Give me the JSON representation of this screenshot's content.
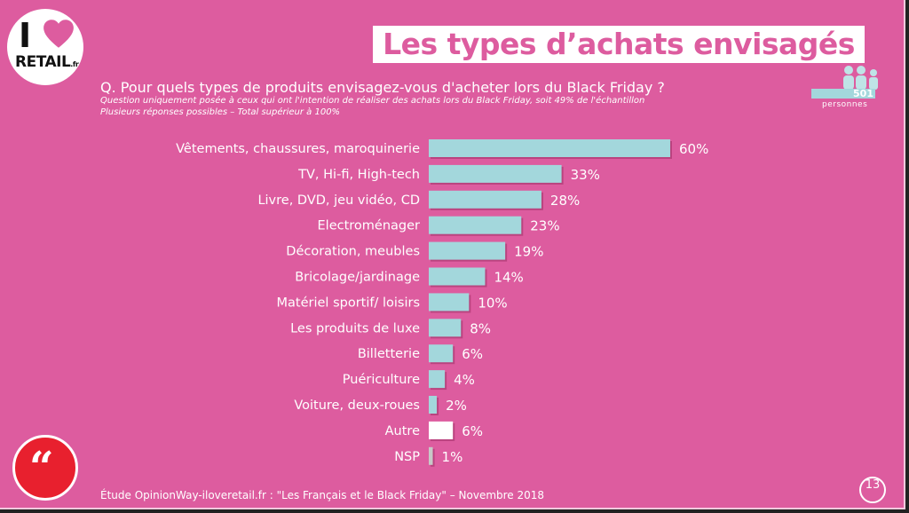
{
  "header": {
    "title": "Les types d’achats envisagés",
    "question": "Q. Pour quels types de produits envisagez-vous d'acheter lors du Black Friday ?",
    "note_1": "Question uniquement posée à ceux qui ont l'intention de réaliser des achats lors du Black Friday, soit 49% de l'échantillon",
    "note_2": "Plusieurs réponses possibles – Total supérieur à 100%"
  },
  "logo": {
    "i_text": "I",
    "retail_text": "RETAIL",
    "fr_text": ".fr",
    "heart_icon": "heart-icon"
  },
  "sample": {
    "count": "501",
    "label": "personnes",
    "icon": "people-icon"
  },
  "footer": {
    "quote_icon": "quote-icon",
    "source": "Étude OpinionWay-iloveretail.fr : \"Les Français et le Black Friday\" – Novembre 2018",
    "page_number": "13"
  },
  "colors": {
    "background": "#dd5c9f",
    "bar": "#a3d7dc",
    "bar_autre": "#ffffff",
    "bar_nsp": "#c8c8c8",
    "quote_red": "#e8202e"
  },
  "chart_data": {
    "type": "bar",
    "orientation": "horizontal",
    "categories": [
      "Vêtements, chaussures, maroquinerie",
      "TV, Hi-fi, High-tech",
      "Livre, DVD, jeu vidéo, CD",
      "Electroménager",
      "Décoration, meubles",
      "Bricolage/jardinage",
      "Matériel sportif/ loisirs",
      "Les produits de luxe",
      "Billetterie",
      "Puériculture",
      "Voiture, deux-roues",
      "Autre",
      "NSP"
    ],
    "values": [
      60,
      33,
      28,
      23,
      19,
      14,
      10,
      8,
      6,
      4,
      2,
      6,
      1
    ],
    "value_labels": [
      "60%",
      "33%",
      "28%",
      "23%",
      "19%",
      "14%",
      "10%",
      "8%",
      "6%",
      "4%",
      "2%",
      "6%",
      "1%"
    ],
    "unit": "%",
    "xlim": [
      0,
      60
    ],
    "grid": false,
    "legend": "none"
  }
}
